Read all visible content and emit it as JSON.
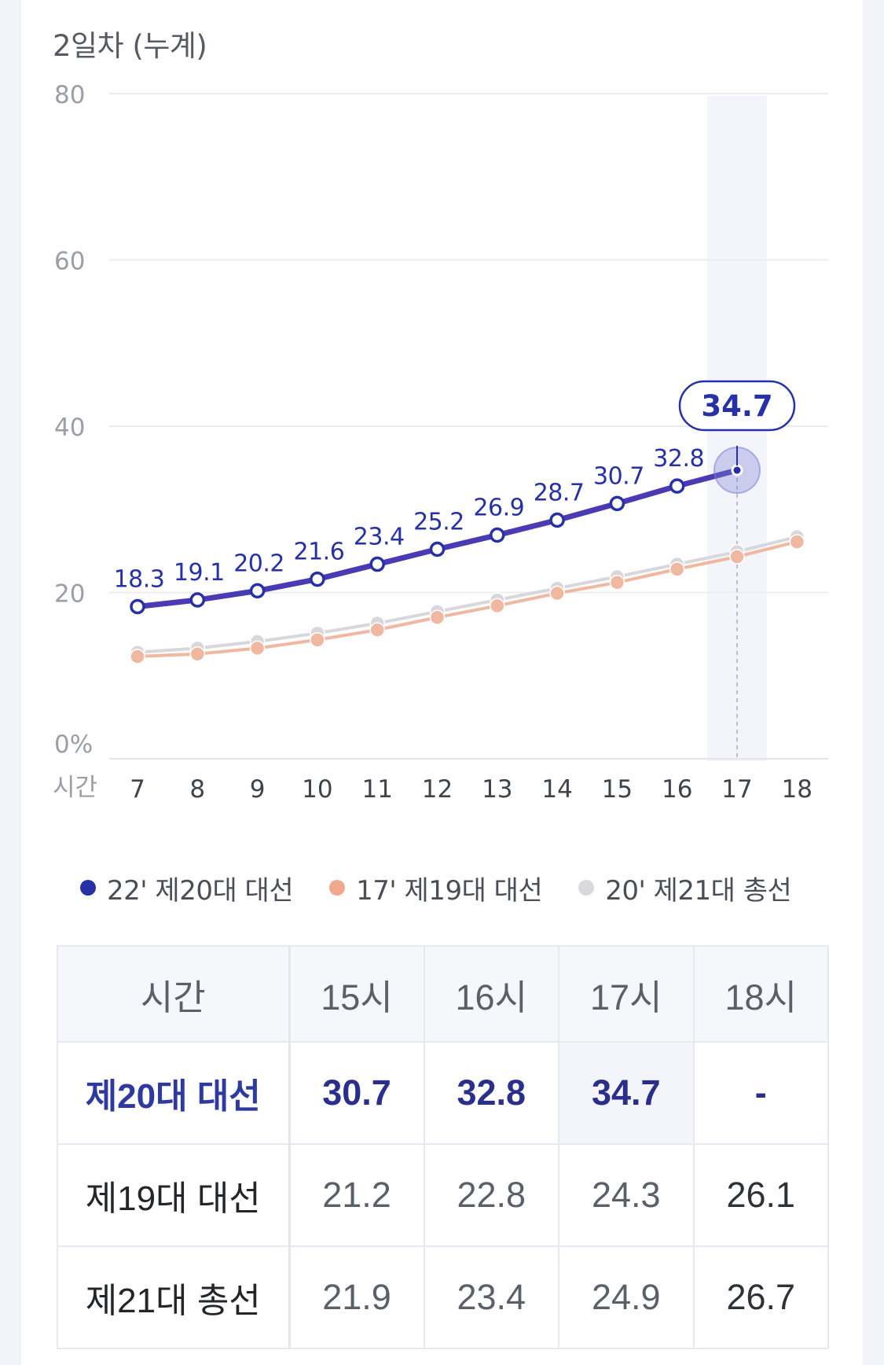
{
  "title": "2일차 (누계)",
  "chart_data": {
    "type": "line",
    "x": [
      7,
      8,
      9,
      10,
      11,
      12,
      13,
      14,
      15,
      16,
      17,
      18
    ],
    "xlabel": "시간",
    "ylim": [
      0,
      80
    ],
    "yticks": [
      "0%",
      "20",
      "40",
      "60",
      "80"
    ],
    "ytick_values": [
      0,
      20,
      40,
      60,
      80
    ],
    "grid": true,
    "highlight_x": 17,
    "highlight_value": "34.7",
    "legend_position": "bottom",
    "series": [
      {
        "name": "22' 제20대 대선",
        "color": "#4a3bb5",
        "values": [
          18.3,
          19.1,
          20.2,
          21.6,
          23.4,
          25.2,
          26.9,
          28.7,
          30.7,
          32.8,
          34.7,
          null
        ],
        "labels": [
          "18.3",
          "19.1",
          "20.2",
          "21.6",
          "23.4",
          "25.2",
          "26.9",
          "28.7",
          "30.7",
          "32.8",
          "",
          ""
        ]
      },
      {
        "name": "17' 제19대 대선",
        "color": "#f0b8a0",
        "values": [
          12.3,
          12.6,
          13.3,
          14.3,
          15.5,
          17.0,
          18.4,
          19.9,
          21.2,
          22.8,
          24.3,
          26.1
        ]
      },
      {
        "name": "20' 제21대 총선",
        "color": "#d7d7dc",
        "values": [
          12.8,
          13.3,
          14.1,
          15.1,
          16.3,
          17.7,
          19.1,
          20.5,
          21.9,
          23.4,
          24.9,
          26.7
        ]
      }
    ]
  },
  "legend": [
    {
      "label": "22' 제20대 대선",
      "color": "#2631a8"
    },
    {
      "label": "17' 제19대 대선",
      "color": "#f0a98b"
    },
    {
      "label": "20' 제21대 총선",
      "color": "#d9d9dd"
    }
  ],
  "table": {
    "header": [
      "시간",
      "15시",
      "16시",
      "17시",
      "18시"
    ],
    "rows": [
      {
        "label": "제20대 대선",
        "values": [
          "30.7",
          "32.8",
          "34.7",
          "-"
        ]
      },
      {
        "label": "제19대 대선",
        "values": [
          "21.2",
          "22.8",
          "24.3",
          "26.1"
        ]
      },
      {
        "label": "제21대 총선",
        "values": [
          "21.9",
          "23.4",
          "24.9",
          "26.7"
        ]
      }
    ]
  }
}
